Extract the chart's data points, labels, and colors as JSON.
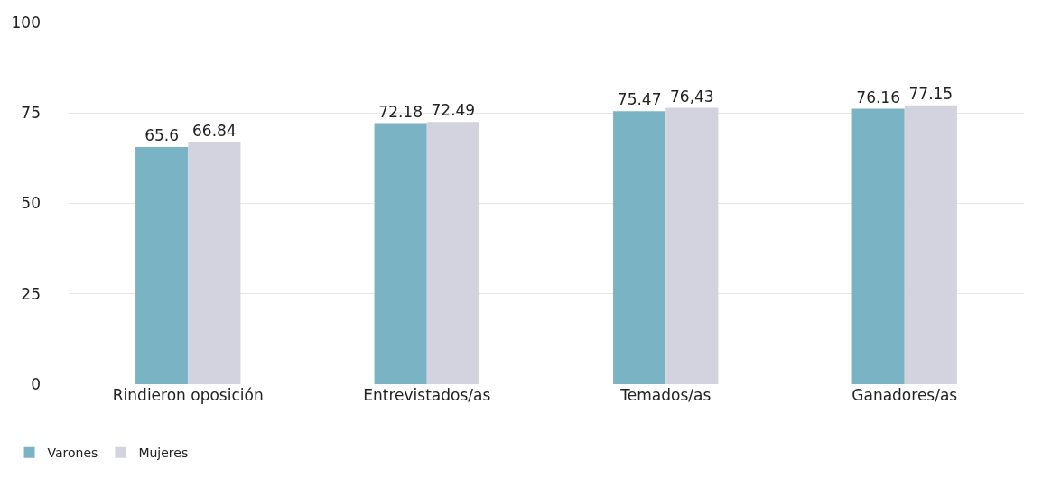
{
  "chart_data": {
    "type": "bar",
    "categories": [
      "Rindieron oposición",
      "Entrevistados/as",
      "Temados/as",
      "Ganadores/as"
    ],
    "series": [
      {
        "name": "Varones",
        "color": "#7ab3c3",
        "values": [
          65.6,
          72.18,
          75.47,
          76.16
        ],
        "value_labels": [
          "65.6",
          "72.18",
          "75.47",
          "76.16"
        ]
      },
      {
        "name": "Mujeres",
        "color": "#d3d3df",
        "values": [
          66.84,
          72.49,
          76.43,
          77.15
        ],
        "value_labels": [
          "66.84",
          "72.49",
          "76,43",
          "77.15"
        ]
      }
    ],
    "ylim": [
      0,
      100
    ],
    "yticks": [
      0,
      25,
      50,
      75,
      100
    ],
    "grid": "y",
    "legend": "bottom left"
  }
}
